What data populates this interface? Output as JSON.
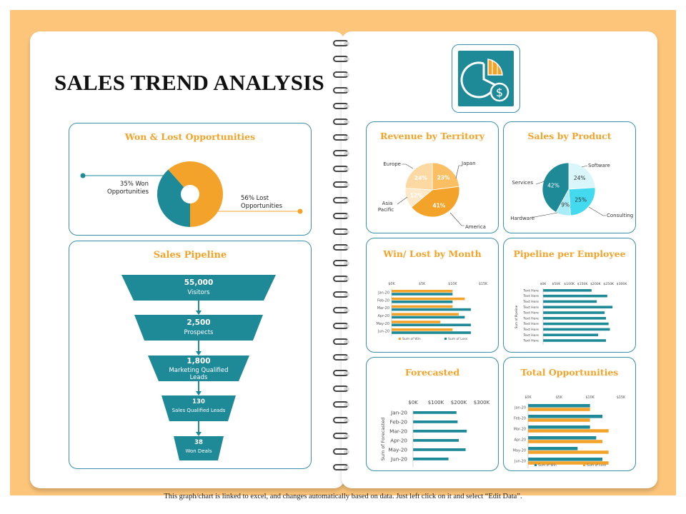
{
  "title": "SALES TREND ANALYSIS",
  "footer": "This graph/chart is linked to excel, and changes automatically based on data. Just left click on it and select “Edit Data”.",
  "colors": {
    "teal": "#1e8997",
    "orange": "#f4a32a",
    "card_border": "#3a8fab",
    "background": "#fcc57a"
  },
  "logo_icon": "pie-chart-dollar-icon",
  "cards": {
    "won_lost": "Won & Lost Opportunities",
    "revenue": "Revenue by Territory",
    "product": "Sales by Product",
    "pipeline": "Sales Pipeline",
    "winlost_month": "Win/ Lost by Month",
    "pipeline_employee": "Pipeline per Employee",
    "forecasted": "Forecasted",
    "total_opps": "Total Opportunities"
  },
  "won_lost": {
    "won_label_1": "35% Won",
    "won_label_2": "Opportunities",
    "lost_label_1": "56% Lost",
    "lost_label_2": "Opportunities"
  },
  "chart_data": [
    {
      "type": "pie",
      "id": "won_lost",
      "title": "Won & Lost Opportunities",
      "categories": [
        "Won Opportunities",
        "Lost Opportunities"
      ],
      "values": [
        35,
        56
      ],
      "colors": [
        "#1e8997",
        "#f4a32a"
      ]
    },
    {
      "type": "pie",
      "id": "revenue",
      "title": "Revenue by Territory",
      "categories": [
        "Japan",
        "America",
        "Asia Pacific",
        "Europe"
      ],
      "values": [
        23,
        41,
        12,
        24
      ],
      "value_labels": [
        "23%",
        "41%",
        "12%",
        "24%"
      ],
      "colors": [
        "#fbbf63",
        "#f4a32a",
        "#fde9c9",
        "#fcd9a2"
      ]
    },
    {
      "type": "pie",
      "id": "product",
      "title": "Sales by Product",
      "categories": [
        "Software",
        "Consulting",
        "Hardware",
        "Services"
      ],
      "values": [
        24,
        25,
        9,
        42
      ],
      "value_labels": [
        "24%",
        "25%",
        "9%",
        "42%"
      ],
      "colors": [
        "#d8f6fc",
        "#43d9ee",
        "#a9ecf7",
        "#1e8997"
      ]
    },
    {
      "type": "bar",
      "id": "pipeline",
      "title": "Sales Pipeline",
      "categories": [
        "Visitors",
        "Prospects",
        "Marketing Qualified Leads",
        "Sales Qualified Leads",
        "Won Deals"
      ],
      "values": [
        55000,
        2500,
        1800,
        130,
        38
      ],
      "value_labels": [
        "55,000",
        "2,500",
        "1,800",
        "130",
        "38"
      ]
    },
    {
      "type": "bar",
      "id": "winlost_month",
      "title": "Win/ Lost by Month",
      "categories": [
        "Jan-20",
        "Feb-20",
        "Mar-20",
        "Apr-20",
        "May-20",
        "Jun-20"
      ],
      "x_ticks": [
        "$0K",
        "$5K",
        "$10K",
        "$15K"
      ],
      "xlim": [
        0,
        15
      ],
      "series": [
        {
          "name": "Sum of Win",
          "color": "#f4a32a",
          "values": [
            10,
            12,
            10,
            11,
            8,
            10
          ]
        },
        {
          "name": "Sum of Loss",
          "color": "#1e8997",
          "values": [
            10,
            10,
            13,
            12,
            13,
            13
          ]
        }
      ]
    },
    {
      "type": "bar",
      "id": "pipeline_employee",
      "title": "Pipeline per Employee",
      "ylabel": "Sum of Pipeline",
      "categories": [
        "Text Here",
        "Text Here",
        "Text Here",
        "Text Here",
        "Text Here",
        "Text Here",
        "Text Here",
        "Text Here",
        "Text Here",
        "Text Here"
      ],
      "x_ticks": [
        "$0K",
        "$50K",
        "$100K",
        "$150K",
        "$200K",
        "$250K",
        "$300K"
      ],
      "xlim": [
        0,
        300
      ],
      "values": [
        185,
        245,
        205,
        265,
        235,
        240,
        250,
        255,
        210,
        240
      ]
    },
    {
      "type": "bar",
      "id": "forecasted",
      "title": "Forecasted",
      "ylabel": "Sum of Forecasted",
      "categories": [
        "Jan-20",
        "Feb-20",
        "Mar-20",
        "Apr-20",
        "May-20",
        "Jun-20"
      ],
      "x_ticks": [
        "$0K",
        "$100K",
        "$200K",
        "$300K"
      ],
      "xlim": [
        0,
        300
      ],
      "values": [
        190,
        195,
        235,
        200,
        230,
        155
      ]
    },
    {
      "type": "bar",
      "id": "total_opps",
      "title": "Total Opportunities",
      "categories": [
        "Jan-20",
        "Feb-20",
        "Mar-20",
        "Apr-20",
        "May-20",
        "Jun-20"
      ],
      "x_ticks": [
        "$0K",
        "$5K",
        "$10K",
        "$15K"
      ],
      "xlim": [
        0,
        15
      ],
      "series": [
        {
          "name": "Sum of Win",
          "color": "#1e8997",
          "values": [
            10,
            12,
            10,
            11,
            8,
            12
          ]
        },
        {
          "name": "Sum of Loss",
          "color": "#f4a32a",
          "values": [
            10,
            10,
            13,
            12,
            13,
            13
          ]
        }
      ]
    }
  ]
}
